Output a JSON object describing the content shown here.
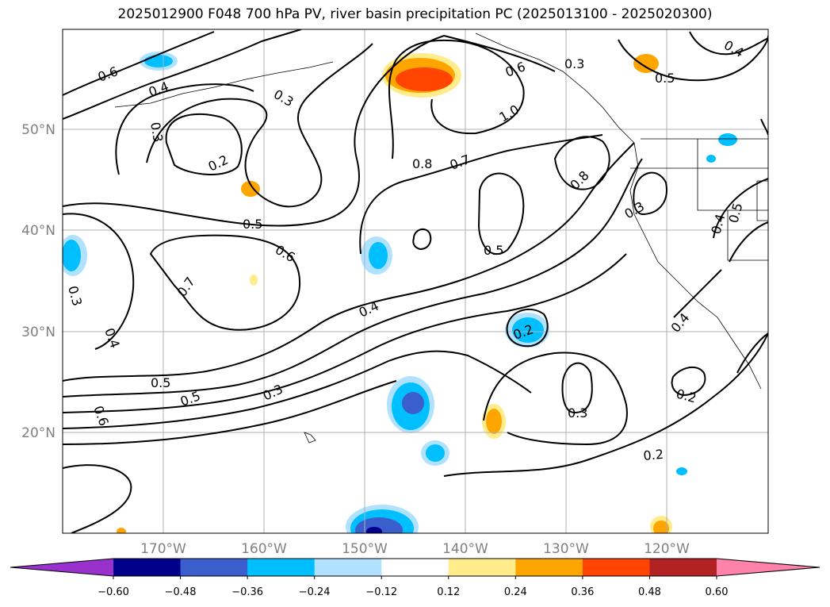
{
  "title": "2025012900 F048 700 hPa PV, river basin precipitation PC (2025013100 - 2025020300)",
  "map": {
    "lat_labels": [
      "50°N",
      "40°N",
      "30°N",
      "20°N"
    ],
    "lon_labels": [
      "170°W",
      "160°W",
      "150°W",
      "140°W",
      "130°W",
      "120°W"
    ],
    "contour_labels": [
      "0.6",
      "0.4",
      "0.3",
      "0.3",
      "0.2",
      "0.5",
      "0.6",
      "0.7",
      "0.3",
      "0.4",
      "0.5",
      "0.5",
      "0.6",
      "0.3",
      "0.4",
      "0.6",
      "0.8",
      "0.7",
      "1.0",
      "0.3",
      "0.4",
      "0.5",
      "0.8",
      "0.3",
      "0.5",
      "0.2",
      "0.3",
      "0.2",
      "0.2",
      "0.4",
      "0.4",
      "0.5"
    ]
  },
  "colorbar": {
    "ticks": [
      "−0.60",
      "−0.48",
      "−0.36",
      "−0.24",
      "−0.12",
      "0.12",
      "0.24",
      "0.36",
      "0.48",
      "0.60"
    ],
    "colors": [
      "#9932cc",
      "#00008b",
      "#3a5fcd",
      "#00bfff",
      "#b0e2ff",
      "#ffffff",
      "#ffec8b",
      "#ffa500",
      "#ff4500",
      "#b22222",
      "#ff82ab"
    ]
  }
}
